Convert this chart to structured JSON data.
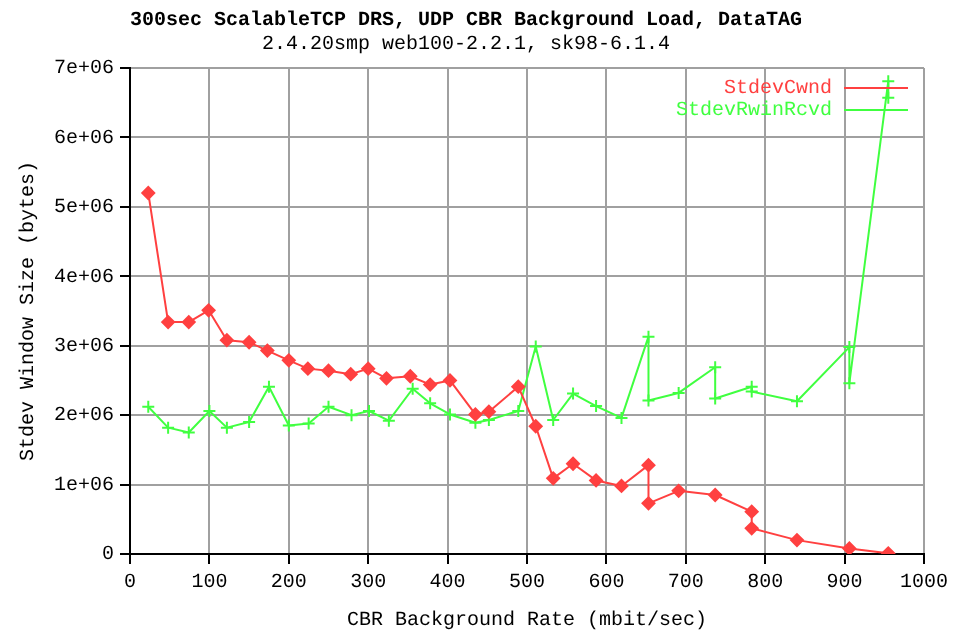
{
  "chart_data": {
    "type": "line",
    "title": "300sec ScalableTCP DRS, UDP CBR Background Load, DataTAG",
    "subtitle": "2.4.20smp web100-2.2.1, sk98-6.1.4",
    "xlabel": "CBR Background Rate (mbit/sec)",
    "ylabel": "Stdev Window Size (bytes)",
    "xlim": [
      0,
      1000
    ],
    "xticks": [
      0,
      100,
      200,
      300,
      400,
      500,
      600,
      700,
      800,
      900,
      1000
    ],
    "ylim": [
      0,
      7000000
    ],
    "yticks": [
      0,
      {
        "value": 1000000,
        "label": "1e+06"
      },
      {
        "value": 2000000,
        "label": "2e+06"
      },
      {
        "value": 3000000,
        "label": "3e+06"
      },
      {
        "value": 4000000,
        "label": "4e+06"
      },
      {
        "value": 5000000,
        "label": "5e+06"
      },
      {
        "value": 6000000,
        "label": "6e+06"
      },
      {
        "value": 7000000,
        "label": "7e+06"
      }
    ],
    "grid": true,
    "legend": "top right",
    "line_style": "solid",
    "series": [
      {
        "name": "StdevCwnd",
        "color": "#ff4040",
        "marker": "diamond",
        "x": [
          23,
          48,
          74,
          99,
          122,
          150,
          173,
          200,
          224,
          250,
          278,
          300,
          323,
          353,
          378,
          403,
          435,
          452,
          489,
          511,
          533,
          558,
          587,
          619,
          653,
          653,
          691,
          737,
          783,
          783,
          840,
          906,
          955
        ],
        "values": [
          5200000,
          3340000,
          3340000,
          3510000,
          3080000,
          3050000,
          2930000,
          2790000,
          2670000,
          2640000,
          2590000,
          2670000,
          2530000,
          2560000,
          2440000,
          2500000,
          2010000,
          2050000,
          2410000,
          1840000,
          1090000,
          1300000,
          1060000,
          980000,
          1280000,
          730000,
          910000,
          850000,
          610000,
          370000,
          200000,
          80000,
          10000
        ]
      },
      {
        "name": "StdevRwinRcvd",
        "color": "#40ff40",
        "marker": "cross",
        "x": [
          23,
          48,
          74,
          100,
          122,
          150,
          175,
          200,
          225,
          250,
          279,
          301,
          326,
          356,
          378,
          403,
          435,
          452,
          489,
          511,
          533,
          558,
          587,
          619,
          653,
          653,
          691,
          737,
          737,
          783,
          783,
          840,
          906,
          906,
          955,
          955
        ],
        "values": [
          2120000,
          1820000,
          1750000,
          2060000,
          1820000,
          1900000,
          2410000,
          1850000,
          1880000,
          2120000,
          2000000,
          2060000,
          1920000,
          2380000,
          2170000,
          2010000,
          1890000,
          1930000,
          2060000,
          2990000,
          1930000,
          2310000,
          2130000,
          1960000,
          3130000,
          2210000,
          2320000,
          2690000,
          2240000,
          2410000,
          2340000,
          2200000,
          2980000,
          2460000,
          6810000,
          6570000
        ]
      }
    ]
  }
}
